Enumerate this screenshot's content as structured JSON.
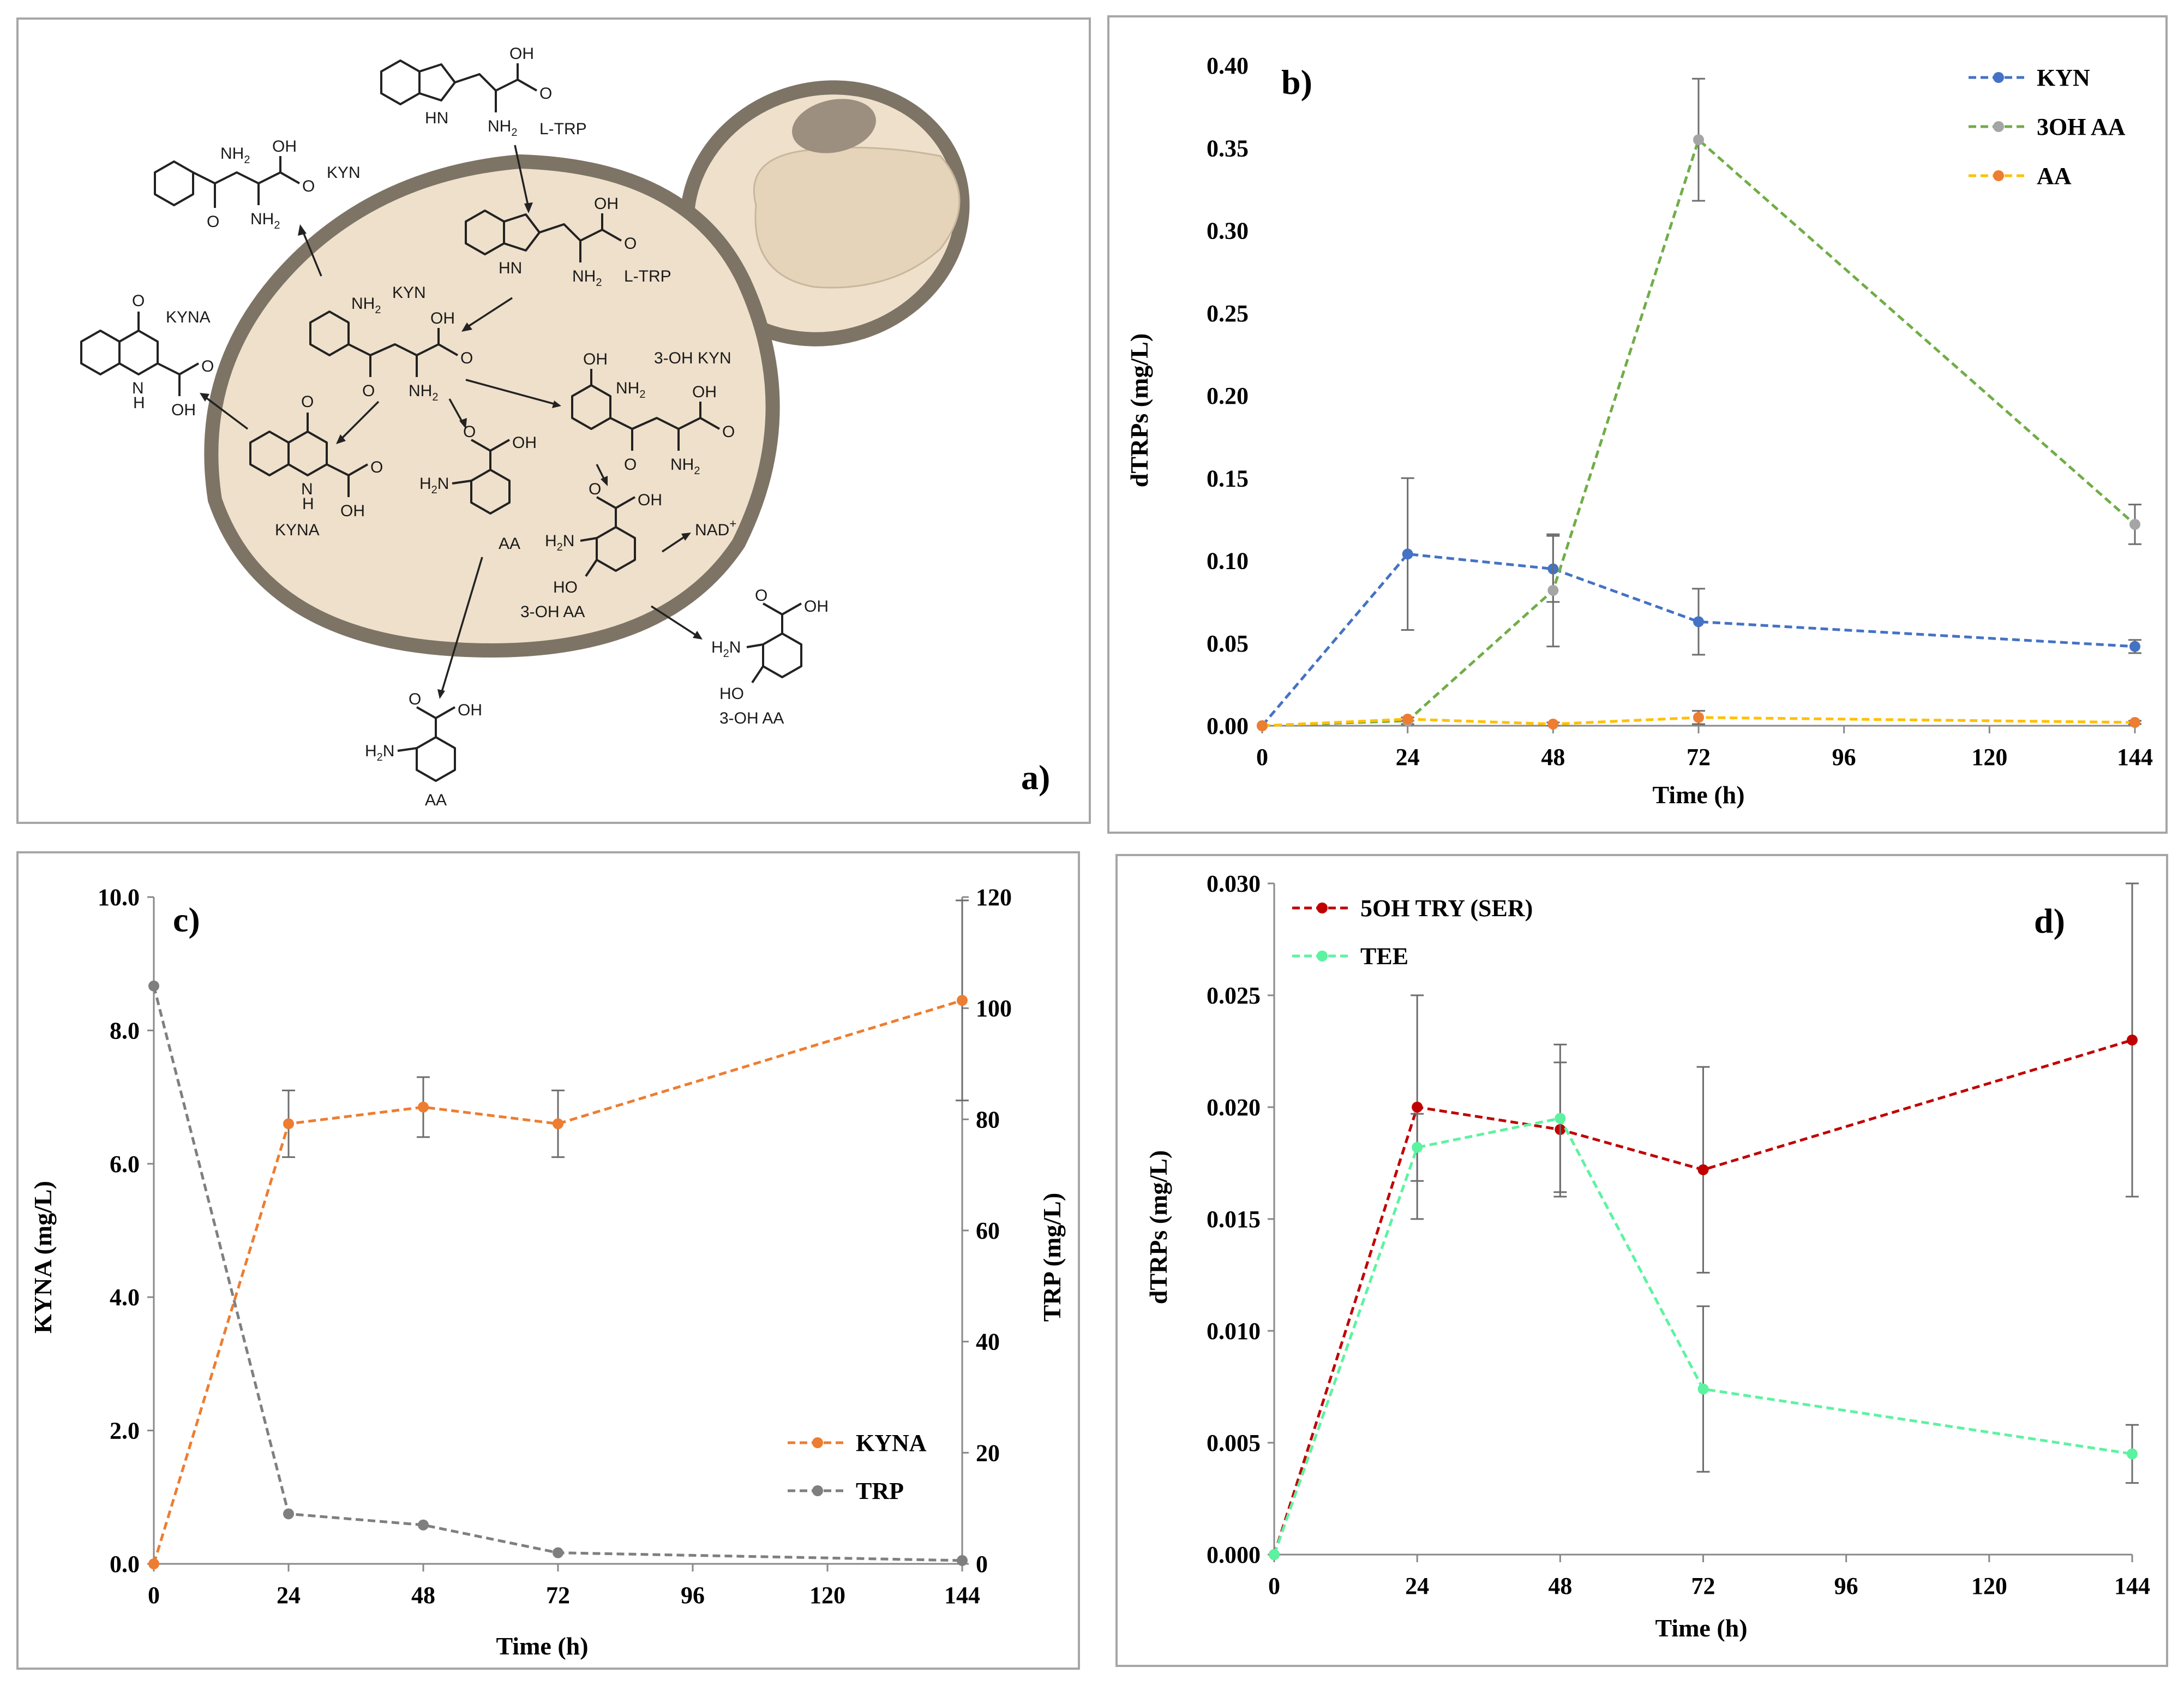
{
  "diagram": {
    "panel_label": "a)",
    "molecules": {
      "ltrp_outside": "L-TRP",
      "ltrp_inside": "L-TRP",
      "kyn_outside": "KYN",
      "kyn_inside": "KYN",
      "kyna_outside": "KYNA",
      "kyna_inside": "KYNA",
      "ohkyn": "3-OH KYN",
      "aa_inside": "AA",
      "aa_outside": "AA",
      "ohaa_inside": "3-OH AA",
      "ohaa_outside": "3-OH AA",
      "nad_base": "NAD",
      "nad_sup": "+"
    },
    "atoms": {
      "oh": "OH",
      "o": "O",
      "nh2": "NH",
      "nh2_sub": "2",
      "h2n": "H",
      "h2n_sub": "2",
      "h2n_n": "N",
      "hn": "HN",
      "n": "N",
      "h": "H",
      "ho": "HO"
    },
    "colors": {
      "cell_fill": "#efe0cb",
      "cell_border": "#7d7466",
      "bud_inner": "#e6d4ba",
      "nucleolus": "#9c8f7f"
    }
  },
  "chart_data": [
    {
      "panel_label": "b)",
      "type": "line",
      "xlabel": "Time (h)",
      "ylabel": "dTRPs (mg/L)",
      "xlim": [
        0,
        144
      ],
      "ylim": [
        0,
        0.4
      ],
      "x_ticks": [
        "0",
        "24",
        "48",
        "72",
        "96",
        "120",
        "144"
      ],
      "y_ticks": [
        "0.00",
        "0.05",
        "0.10",
        "0.15",
        "0.20",
        "0.25",
        "0.30",
        "0.35",
        "0.40"
      ],
      "legend_position": "top-right",
      "series": [
        {
          "name": "KYN",
          "color": "#4472c4",
          "x": [
            0,
            24,
            48,
            72,
            144
          ],
          "y": [
            0.0,
            0.104,
            0.095,
            0.063,
            0.048
          ],
          "err": [
            0,
            0.046,
            0.02,
            0.02,
            0.004
          ]
        },
        {
          "name": "3OH AA",
          "color": "#70ad47",
          "marker_color": "#a5a5a5",
          "x": [
            0,
            24,
            48,
            72,
            144
          ],
          "y": [
            0.0,
            0.003,
            0.082,
            0.355,
            0.122
          ],
          "err": [
            0,
            0.002,
            0.034,
            0.037,
            0.012
          ]
        },
        {
          "name": "AA",
          "color": "#ffc000",
          "marker_color": "#ed7d31",
          "x": [
            0,
            24,
            48,
            72,
            144
          ],
          "y": [
            0.0,
            0.004,
            0.001,
            0.005,
            0.002
          ],
          "err": [
            0,
            0.001,
            0.001,
            0.004,
            0.001
          ]
        }
      ]
    },
    {
      "panel_label": "c)",
      "type": "line",
      "xlabel": "Time (h)",
      "ylabel": "KYNA (mg/L)",
      "ylabel_right": "TRP (mg/L)",
      "xlim": [
        0,
        144
      ],
      "ylim": [
        0,
        10
      ],
      "ylim_right": [
        0,
        120
      ],
      "x_ticks": [
        "0",
        "24",
        "48",
        "72",
        "96",
        "120",
        "144"
      ],
      "y_ticks": [
        "0.0",
        "2.0",
        "4.0",
        "6.0",
        "8.0",
        "10.0"
      ],
      "y_ticks_right": [
        "0",
        "20",
        "40",
        "60",
        "80",
        "100",
        "120"
      ],
      "legend_position": "bottom-right",
      "series": [
        {
          "name": "KYNA",
          "color": "#ed7d31",
          "axis": "left",
          "x": [
            0,
            24,
            48,
            72,
            144
          ],
          "y": [
            0.0,
            6.6,
            6.85,
            6.6,
            8.45
          ],
          "err": [
            0,
            0.5,
            0.45,
            0.5,
            1.5
          ]
        },
        {
          "name": "TRP",
          "color": "#7f7f7f",
          "axis": "right",
          "x": [
            0,
            24,
            48,
            72,
            144
          ],
          "y": [
            104,
            9,
            7,
            2,
            0.6
          ],
          "err": [
            0,
            0,
            0,
            0,
            0
          ]
        }
      ]
    },
    {
      "panel_label": "d)",
      "type": "line",
      "xlabel": "Time (h)",
      "ylabel": "dTRPs (mg/L)",
      "xlim": [
        0,
        144
      ],
      "ylim": [
        0,
        0.03
      ],
      "x_ticks": [
        "0",
        "24",
        "48",
        "72",
        "96",
        "120",
        "144"
      ],
      "y_ticks": [
        "0.000",
        "0.005",
        "0.010",
        "0.015",
        "0.020",
        "0.025",
        "0.030"
      ],
      "legend_position": "top-left",
      "series": [
        {
          "name": "5OH TRY (SER)",
          "color": "#c00000",
          "x": [
            0,
            24,
            48,
            72,
            144
          ],
          "y": [
            0.0,
            0.02,
            0.019,
            0.0172,
            0.023
          ],
          "err": [
            0,
            0.005,
            0.003,
            0.0046,
            0.007
          ]
        },
        {
          "name": "TEE",
          "color": "#5cf3a0",
          "x": [
            0,
            24,
            48,
            72,
            144
          ],
          "y": [
            0.0,
            0.0182,
            0.0195,
            0.0074,
            0.0045
          ],
          "err": [
            0,
            0.0015,
            0.0033,
            0.0037,
            0.0013
          ]
        }
      ]
    }
  ]
}
